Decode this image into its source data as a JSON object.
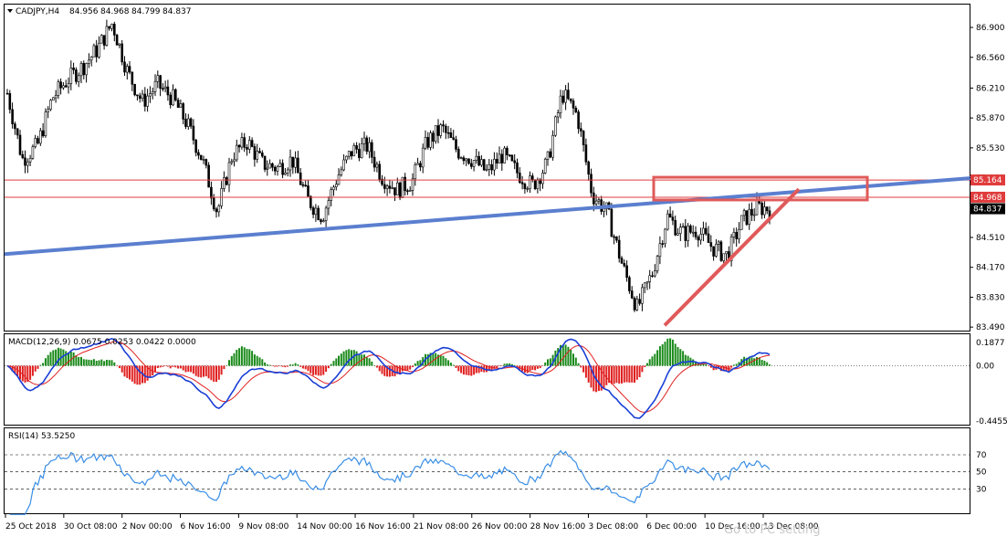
{
  "symbol": "CADJPY,H4",
  "ohlc": {
    "open": "84.956",
    "high": "84.968",
    "low": "84.799",
    "close": "84.837"
  },
  "price_tags": {
    "upper_line": {
      "value": 85.164,
      "label": "85.164",
      "color": "#e03c3c"
    },
    "lower_line": {
      "value": 84.968,
      "label": "84.968",
      "color": "#e03c3c"
    },
    "current": {
      "value": 84.837,
      "label": "84.837"
    }
  },
  "main_axis": {
    "ticks": [
      "86.900",
      "86.560",
      "86.210",
      "85.870",
      "85.530",
      "85.190",
      "84.850",
      "84.510",
      "84.170",
      "83.830",
      "83.490"
    ],
    "ylim": [
      83.45,
      87.15
    ]
  },
  "macd": {
    "title": "MACD(12,26,9) 0.0675 0.0253 0.0422 0.0000",
    "ticks": [
      "0.1877",
      "0.00",
      "-0.4455"
    ]
  },
  "rsi": {
    "title": "RSI(14) 53.5250",
    "ticks": [
      "70",
      "50",
      "30"
    ],
    "levels": [
      70,
      50,
      30
    ]
  },
  "x_labels": [
    "25 Oct 2018",
    "30 Oct 08:00",
    "2 Nov 00:00",
    "6 Nov 16:00",
    "9 Nov 08:00",
    "14 Nov 00:00",
    "16 Nov 16:00",
    "21 Nov 08:00",
    "26 Nov 00:00",
    "28 Nov 16:00",
    "3 Dec 08:00",
    "6 Dec 00:00",
    "10 Dec 16:00",
    "13 Dec 08:00"
  ],
  "watermark": "Go to PC setting",
  "colors": {
    "up": "#1a8a1a",
    "down": "#e02020",
    "trendline": "#5b7fcf",
    "resistance": "#e03c3c",
    "macd_line": "#1a3fd6",
    "signal_line": "#e02020",
    "rsi_line": "#3a8ee6"
  },
  "chart_data": {
    "type": "candlestick",
    "title": "CADJPY,H4",
    "x": [
      "25 Oct 2018",
      "30 Oct 08:00",
      "2 Nov 00:00",
      "6 Nov 16:00",
      "9 Nov 08:00",
      "14 Nov 00:00",
      "16 Nov 16:00",
      "21 Nov 08:00",
      "26 Nov 00:00",
      "28 Nov 16:00",
      "3 Dec 08:00",
      "6 Dec 00:00",
      "10 Dec 16:00",
      "13 Dec 08:00"
    ],
    "close_path": [
      86.15,
      85.4,
      85.55,
      86.1,
      86.3,
      86.45,
      86.65,
      86.95,
      86.4,
      86.05,
      86.25,
      86.1,
      85.8,
      85.4,
      84.8,
      85.45,
      85.6,
      85.35,
      85.3,
      85.4,
      84.95,
      84.75,
      85.2,
      85.5,
      85.55,
      85.2,
      85.05,
      85.15,
      85.6,
      85.75,
      85.5,
      85.4,
      85.25,
      85.45,
      85.25,
      85.1,
      85.35,
      86.15,
      85.9,
      85.0,
      84.8,
      84.2,
      83.7,
      84.1,
      84.75,
      84.55,
      84.6,
      84.4,
      84.3,
      84.7,
      84.85,
      84.84
    ],
    "ylim": [
      83.45,
      87.15
    ],
    "resistance_levels": [
      85.164,
      84.968
    ],
    "trendline": {
      "start": 84.32,
      "end": 85.19
    },
    "macd_range": [
      -0.4455,
      0.1877
    ],
    "rsi_levels": [
      70,
      50,
      30
    ]
  }
}
